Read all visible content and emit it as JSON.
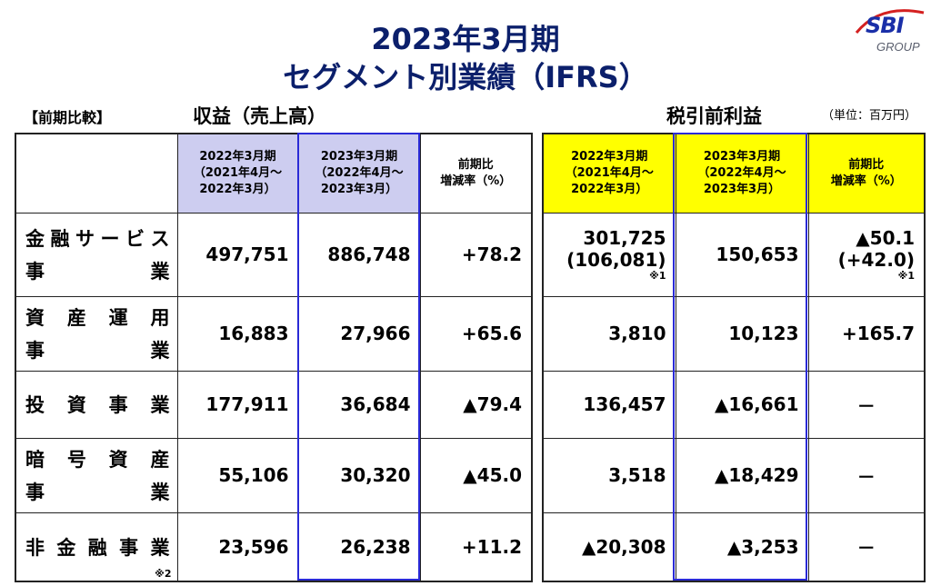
{
  "header": {
    "title_line1": "2023年3月期",
    "title_line2": "セグメント別業績（IFRS）",
    "logo_text": "SBI",
    "logo_sub": "GROUP"
  },
  "labels": {
    "comparison": "【前期比較】",
    "revenue": "収益（売上高）",
    "pretax": "税引前利益",
    "unit": "（単位：百万円）"
  },
  "columns": {
    "fy2022": [
      "2022年3月期",
      "（2021年4月～",
      "2022年3月）"
    ],
    "fy2023": [
      "2023年3月期",
      "（2022年4月～",
      "2023年3月）"
    ],
    "change": [
      "前期比",
      "増減率（%）"
    ]
  },
  "segments": [
    {
      "name_line1": [
        "金",
        "融",
        "サ",
        "ー",
        "ビ",
        "ス"
      ],
      "name_line2": [
        "事",
        "業"
      ],
      "rev_2022": "497,751",
      "rev_2023": "886,748",
      "rev_change": "+78.2",
      "pbt_2022": "301,725",
      "pbt_2022_sub": "(106,081)",
      "pbt_2022_note": "※1",
      "pbt_2023": "150,653",
      "pbt_change": "▲50.1",
      "pbt_change_sub": "(+42.0)",
      "pbt_change_note": "※1"
    },
    {
      "name_line1": [
        "資",
        "産",
        "運",
        "用"
      ],
      "name_line2": [
        "事",
        "業"
      ],
      "rev_2022": "16,883",
      "rev_2023": "27,966",
      "rev_change": "+65.6",
      "pbt_2022": "3,810",
      "pbt_2023": "10,123",
      "pbt_change": "+165.7"
    },
    {
      "name_line1": [
        "投",
        "資",
        "事",
        "業"
      ],
      "rev_2022": "177,911",
      "rev_2023": "36,684",
      "rev_change": "▲79.4",
      "pbt_2022": "136,457",
      "pbt_2023": "▲16,661",
      "pbt_change": "－"
    },
    {
      "name_line1": [
        "暗",
        "号",
        "資",
        "産"
      ],
      "name_line2": [
        "事",
        "業"
      ],
      "rev_2022": "55,106",
      "rev_2023": "30,320",
      "rev_change": "▲45.0",
      "pbt_2022": "3,518",
      "pbt_2023": "▲18,429",
      "pbt_change": "－"
    },
    {
      "name_line1": [
        "非",
        "金",
        "融",
        "事",
        "業"
      ],
      "name_note": "※2",
      "rev_2022": "23,596",
      "rev_2023": "26,238",
      "rev_change": "+11.2",
      "pbt_2022": "▲20,308",
      "pbt_2023": "▲3,253",
      "pbt_change": "－"
    }
  ],
  "colors": {
    "title": "#0b1f6b",
    "revenue_header_bg": "#cdcdf0",
    "pretax_header_bg": "#ffff00",
    "highlight_border": "#2a2ad6",
    "logo_blue": "#1a2fa8"
  }
}
